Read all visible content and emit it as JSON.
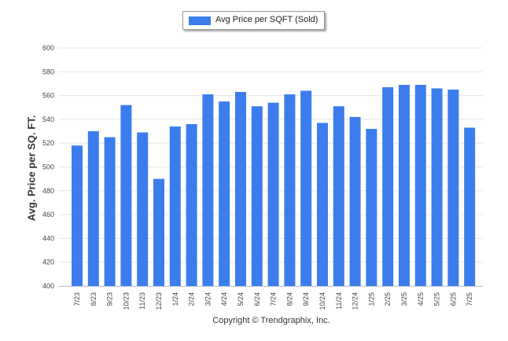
{
  "legend": {
    "label": "Avg Price per SQFT (Sold)"
  },
  "footer": {
    "copyright": "Copyright © Trendgraphix, Inc."
  },
  "colors": {
    "bar": "#3b7ded",
    "grid": "#e6e6e6",
    "axis": "#c8c8c8"
  },
  "chart_data": {
    "type": "bar",
    "ylabel": "Avg. Price per SQ. FT.",
    "ylim": [
      400,
      600
    ],
    "yticks": [
      400,
      420,
      440,
      460,
      480,
      500,
      520,
      540,
      560,
      580,
      600
    ],
    "grid": true,
    "legend_position": "top-center",
    "categories": [
      "7/23",
      "8/23",
      "9/23",
      "10/23",
      "11/23",
      "12/23",
      "1/24",
      "2/24",
      "3/24",
      "4/24",
      "5/24",
      "6/24",
      "7/24",
      "8/24",
      "9/24",
      "10/24",
      "11/24",
      "12/24",
      "1/25",
      "2/25",
      "3/25",
      "4/25",
      "5/25",
      "6/25",
      "7/25"
    ],
    "series": [
      {
        "name": "Avg Price per SQFT (Sold)",
        "values": [
          518,
          530,
          525,
          552,
          529,
          490,
          534,
          536,
          561,
          555,
          563,
          551,
          554,
          561,
          564,
          537,
          551,
          542,
          532,
          567,
          569,
          569,
          566,
          565,
          533
        ]
      }
    ]
  }
}
